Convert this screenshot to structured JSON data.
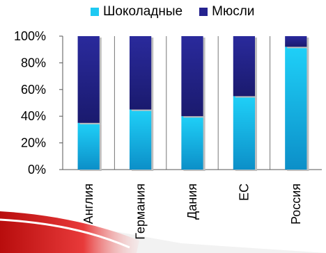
{
  "chart_data": {
    "type": "bar",
    "stacked": "percent",
    "categories": [
      "Англия",
      "Германия",
      "Дания",
      "ЕС",
      "Россия"
    ],
    "series": [
      {
        "name": "Шоколадные",
        "values": [
          35,
          45,
          40,
          55,
          92
        ],
        "color": "#1ec9f2"
      },
      {
        "name": "Мюсли",
        "values": [
          65,
          55,
          60,
          45,
          8
        ],
        "color": "#25238f"
      }
    ],
    "ylim": [
      0,
      100
    ],
    "yticks": [
      "0%",
      "20%",
      "40%",
      "60%",
      "80%",
      "100%"
    ],
    "grid": "vertical",
    "legend": "top"
  }
}
